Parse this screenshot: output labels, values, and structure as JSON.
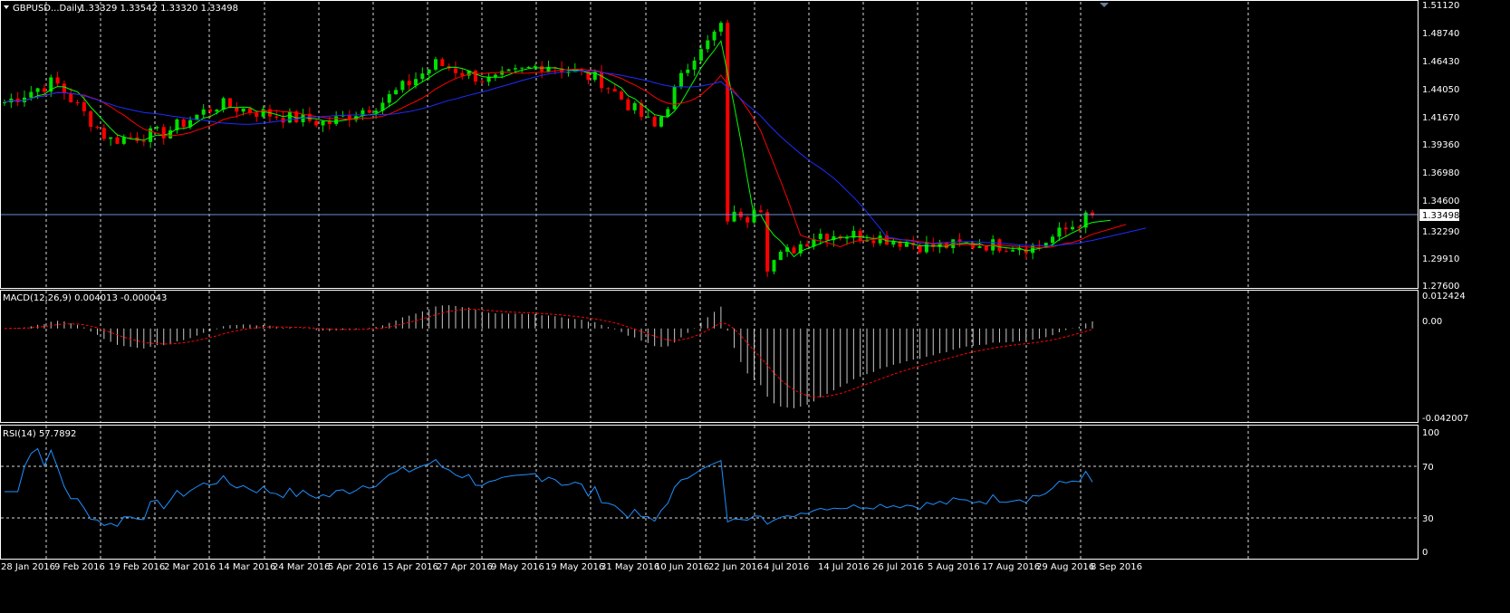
{
  "colors": {
    "background": "#000000",
    "grid": "#d8d8d8",
    "axis_text": "#ffffff",
    "bull_candle": "#00e000",
    "bear_candle": "#ff0000",
    "ma_fast": "#00ff00",
    "ma_mid": "#ff0000",
    "ma_slow": "#1e2cff",
    "price_line": "#6b8fd6",
    "macd_hist": "#c8c8c8",
    "macd_signal": "#ff0000",
    "rsi": "#1e90ff"
  },
  "header": {
    "symbol": "GBPUSD...Daily",
    "ohlc": "1.33329 1.33542 1.33320 1.33498"
  },
  "price_panel": {
    "y_ticks": [
      "1.51120",
      "1.48740",
      "1.46430",
      "1.44050",
      "1.41670",
      "1.39360",
      "1.36980",
      "1.34600",
      "1.32290",
      "1.29910",
      "1.27600"
    ],
    "current_price_label": "1.33498"
  },
  "macd_panel": {
    "label": "MACD(12,26,9) 0.004013 -0.000043",
    "y_ticks": [
      "0.012424",
      "0.00",
      "-0.042007"
    ]
  },
  "rsi_panel": {
    "label": "RSI(14) 57.7892",
    "y_ticks": [
      "100",
      "70",
      "30",
      "0"
    ]
  },
  "x_axis": {
    "dates": [
      "28 Jan 2016",
      "9 Feb 2016",
      "19 Feb 2016",
      "2 Mar 2016",
      "14 Mar 2016",
      "24 Mar 2016",
      "5 Apr 2016",
      "15 Apr 2016",
      "27 Apr 2016",
      "9 May 2016",
      "19 May 2016",
      "31 May 2016",
      "10 Jun 2016",
      "22 Jun 2016",
      "4 Jul 2016",
      "14 Jul 2016",
      "26 Jul 2016",
      "5 Aug 2016",
      "17 Aug 2016",
      "29 Aug 2016",
      "8 Sep 2016"
    ]
  },
  "chart_data": {
    "type": "candlestick",
    "symbol": "GBPUSD",
    "timeframe": "Daily",
    "x_labels": [
      "28 Jan 2016",
      "9 Feb 2016",
      "19 Feb 2016",
      "2 Mar 2016",
      "14 Mar 2016",
      "24 Mar 2016",
      "5 Apr 2016",
      "15 Apr 2016",
      "27 Apr 2016",
      "9 May 2016",
      "19 May 2016",
      "31 May 2016",
      "10 Jun 2016",
      "22 Jun 2016",
      "4 Jul 2016",
      "14 Jul 2016",
      "26 Jul 2016",
      "5 Aug 2016",
      "17 Aug 2016",
      "29 Aug 2016",
      "8 Sep 2016"
    ],
    "price_ylim": [
      1.276,
      1.5112
    ],
    "last_close": 1.33498,
    "close_keypoints": [
      [
        "28 Jan 2016",
        1.428
      ],
      [
        "9 Feb 2016",
        1.447
      ],
      [
        "19 Feb 2016",
        1.398
      ],
      [
        "2 Mar 2016",
        1.404
      ],
      [
        "14 Mar 2016",
        1.428
      ],
      [
        "24 Mar 2016",
        1.419
      ],
      [
        "5 Apr 2016",
        1.412
      ],
      [
        "15 Apr 2016",
        1.43
      ],
      [
        "27 Apr 2016",
        1.462
      ],
      [
        "9 May 2016",
        1.447
      ],
      [
        "19 May 2016",
        1.462
      ],
      [
        "31 May 2016",
        1.448
      ],
      [
        "10 Jun 2016",
        1.408
      ],
      [
        "22 Jun 2016",
        1.492
      ],
      [
        "4 Jul 2016",
        1.292
      ],
      [
        "14 Jul 2016",
        1.32
      ],
      [
        "26 Jul 2016",
        1.318
      ],
      [
        "5 Aug 2016",
        1.309
      ],
      [
        "17 Aug 2016",
        1.311
      ],
      [
        "29 Aug 2016",
        1.309
      ],
      [
        "8 Sep 2016",
        1.335
      ]
    ],
    "macd_ylim": [
      -0.042007,
      0.012424
    ],
    "macd_last": 0.004013,
    "macd_signal_last": -4.3e-05,
    "rsi_ylim": [
      0,
      100
    ],
    "rsi_levels": [
      30,
      70
    ],
    "rsi_last": 57.7892
  }
}
